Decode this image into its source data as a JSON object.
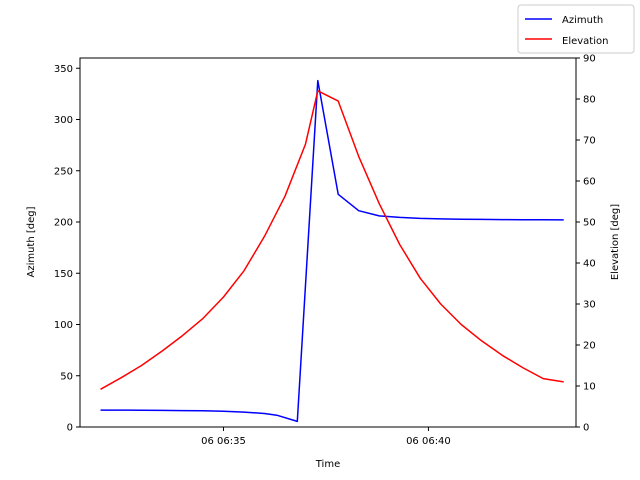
{
  "chart_data": {
    "type": "line",
    "title": "",
    "xlabel": "Time",
    "ylabel_left": "Azimuth [deg]",
    "ylabel_right": "Elevation [deg]",
    "xlim_minutes": [
      -3.5,
      8.6
    ],
    "ylim_left": [
      0,
      360
    ],
    "ylim_right": [
      0,
      90
    ],
    "x_ticks": [
      {
        "label": "06 06:35",
        "t": 0
      },
      {
        "label": "06 06:40",
        "t": 5
      }
    ],
    "y_ticks_left": [
      0,
      50,
      100,
      150,
      200,
      250,
      300,
      350
    ],
    "y_ticks_right": [
      0,
      10,
      20,
      30,
      40,
      50,
      60,
      70,
      80,
      90
    ],
    "grid": false,
    "legend_position": "top-right",
    "series": [
      {
        "name": "Azimuth",
        "color": "#0000ff",
        "axis": "left",
        "t": [
          -3.0,
          -2.5,
          -2.0,
          -1.5,
          -1.0,
          -0.5,
          0.0,
          0.5,
          1.0,
          1.3,
          1.8,
          2.3,
          2.8,
          3.3,
          3.8,
          4.3,
          4.8,
          5.3,
          5.8,
          6.3,
          6.8,
          7.3,
          7.8,
          8.3
        ],
        "values": [
          16.5,
          16.5,
          16.4,
          16.2,
          16.0,
          15.8,
          15.3,
          14.5,
          13.2,
          11.5,
          5.5,
          338,
          227,
          211,
          206,
          204.5,
          203.5,
          203,
          202.7,
          202.5,
          202.3,
          202.2,
          202.1,
          202.0
        ]
      },
      {
        "name": "Elevation",
        "color": "#ff0000",
        "axis": "right",
        "t": [
          -3.0,
          -2.5,
          -2.0,
          -1.5,
          -1.0,
          -0.5,
          0.0,
          0.5,
          1.0,
          1.5,
          2.0,
          2.3,
          2.8,
          3.3,
          3.8,
          4.3,
          4.8,
          5.3,
          5.8,
          6.3,
          6.8,
          7.3,
          7.8,
          8.3
        ],
        "values": [
          9.2,
          12.0,
          15.0,
          18.5,
          22.3,
          26.5,
          31.7,
          38.1,
          46.5,
          56.3,
          69.0,
          82.0,
          79.5,
          66.0,
          54.5,
          44.5,
          36.3,
          30.0,
          25.0,
          21.0,
          17.5,
          14.5,
          11.8,
          11.0
        ]
      }
    ]
  }
}
